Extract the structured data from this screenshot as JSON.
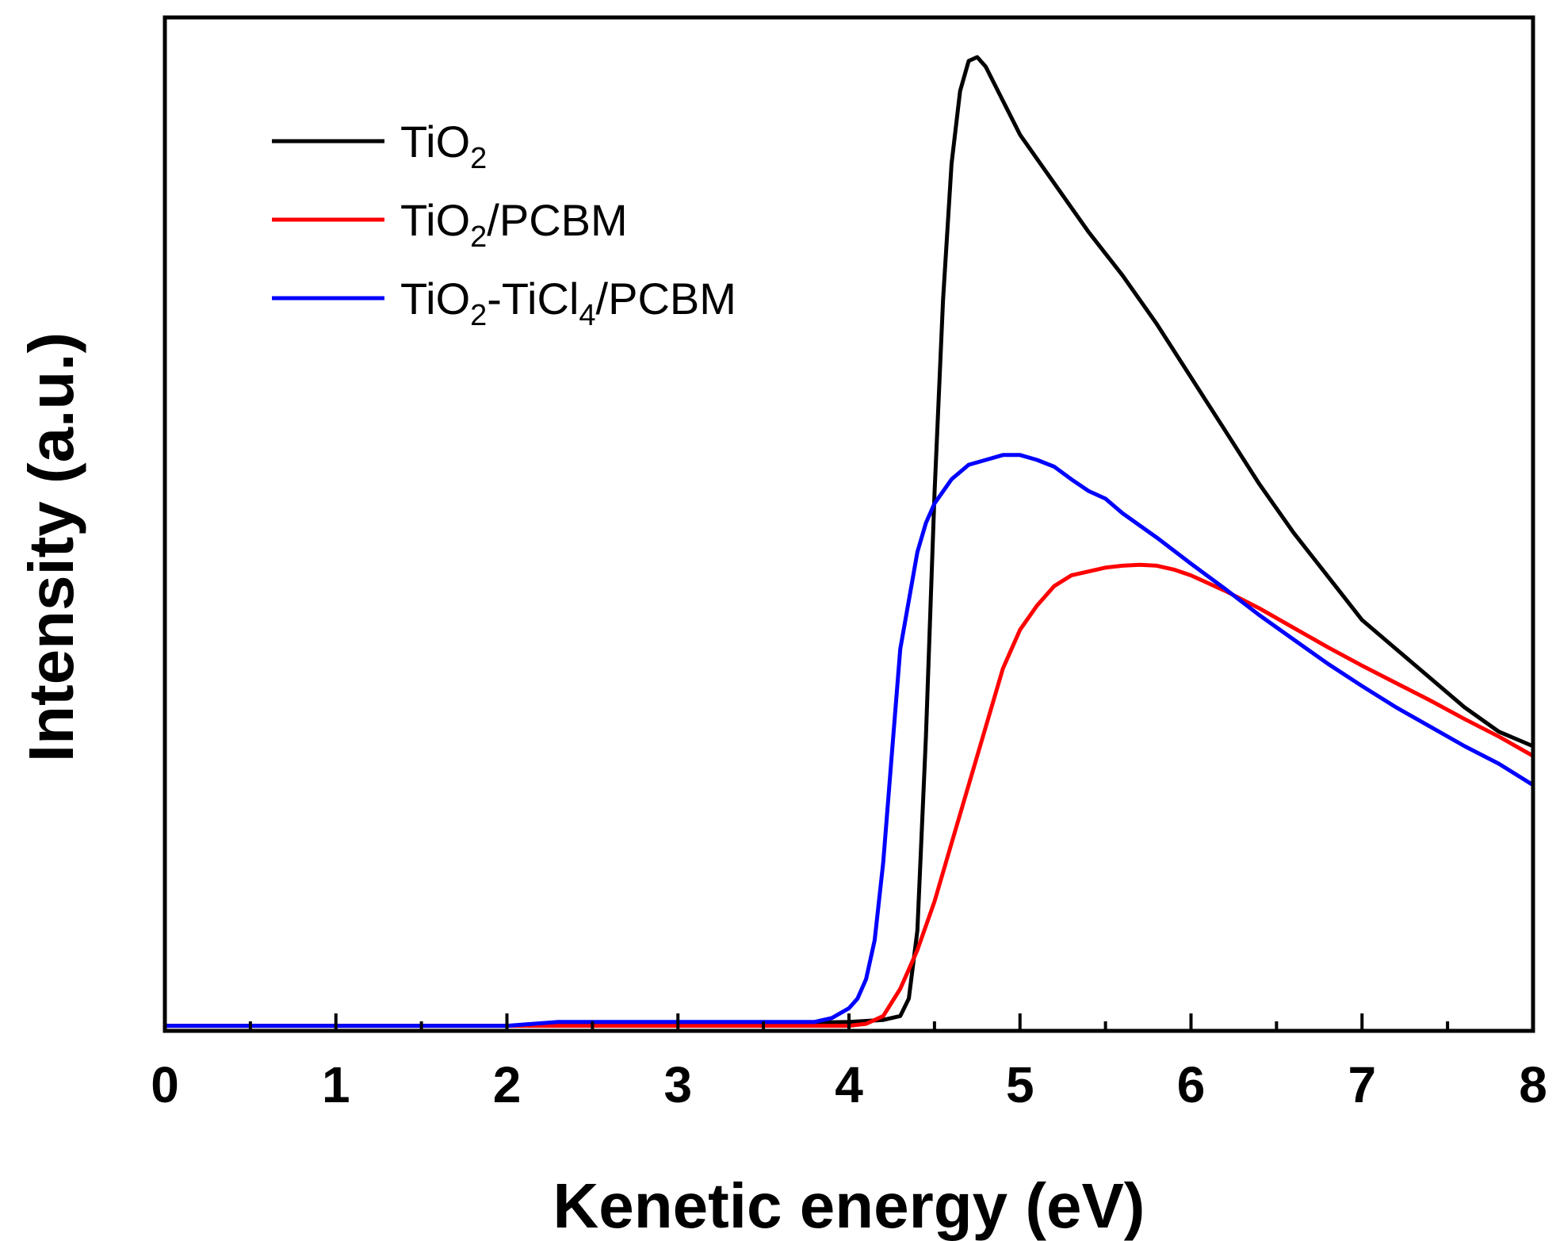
{
  "chart_data": {
    "type": "line",
    "title": "",
    "xlabel": "Kenetic energy (eV)",
    "ylabel": "Intensity (a.u.)",
    "xlim": [
      0,
      8
    ],
    "ylim": [
      0,
      1
    ],
    "y_tick_labels": false,
    "x_ticks": [
      0,
      1,
      2,
      3,
      4,
      5,
      6,
      7,
      8
    ],
    "x_tick_labels": [
      "0",
      "1",
      "2",
      "3",
      "4",
      "5",
      "6",
      "7",
      "8"
    ],
    "grid": false,
    "legend_position": "top-left",
    "series": [
      {
        "name": "TiO2",
        "label_main": "TiO",
        "label_sub": "2",
        "label_tail": "",
        "label_sub2": "",
        "label_tail2": "",
        "color": "#000000",
        "x": [
          0,
          1,
          2,
          3,
          3.5,
          4,
          4.2,
          4.3,
          4.35,
          4.4,
          4.45,
          4.5,
          4.55,
          4.6,
          4.65,
          4.7,
          4.75,
          4.8,
          4.9,
          5.0,
          5.2,
          5.4,
          5.6,
          5.8,
          6.0,
          6.2,
          6.4,
          6.6,
          6.8,
          7.0,
          7.2,
          7.4,
          7.6,
          7.8,
          8.0
        ],
        "y": [
          0.002,
          0.002,
          0.002,
          0.004,
          0.004,
          0.006,
          0.008,
          0.012,
          0.03,
          0.1,
          0.3,
          0.55,
          0.75,
          0.89,
          0.965,
          0.996,
          1.0,
          0.99,
          0.955,
          0.92,
          0.87,
          0.82,
          0.775,
          0.725,
          0.67,
          0.615,
          0.56,
          0.51,
          0.465,
          0.42,
          0.39,
          0.36,
          0.33,
          0.305,
          0.29
        ]
      },
      {
        "name": "TiO2/PCBM",
        "label_main": "TiO",
        "label_sub": "2",
        "label_tail": "/PCBM",
        "label_sub2": "",
        "label_tail2": "",
        "color": "#ff0000",
        "x": [
          0,
          1,
          2,
          3,
          3.5,
          4,
          4.1,
          4.2,
          4.3,
          4.4,
          4.5,
          4.6,
          4.7,
          4.8,
          4.9,
          5.0,
          5.1,
          5.2,
          5.3,
          5.4,
          5.5,
          5.6,
          5.7,
          5.8,
          5.9,
          6.0,
          6.2,
          6.4,
          6.6,
          6.8,
          7.0,
          7.2,
          7.4,
          7.6,
          7.8,
          8.0
        ],
        "y": [
          0.002,
          0.002,
          0.002,
          0.002,
          0.002,
          0.002,
          0.004,
          0.012,
          0.04,
          0.08,
          0.13,
          0.19,
          0.25,
          0.31,
          0.37,
          0.41,
          0.435,
          0.455,
          0.466,
          0.47,
          0.474,
          0.476,
          0.477,
          0.476,
          0.472,
          0.466,
          0.45,
          0.432,
          0.412,
          0.392,
          0.373,
          0.355,
          0.337,
          0.318,
          0.3,
          0.28
        ]
      },
      {
        "name": "TiO2-TiCl4/PCBM",
        "label_main": "TiO",
        "label_sub": "2",
        "label_tail": "-TiCl",
        "label_sub2": "4",
        "label_tail2": "/PCBM",
        "color": "#0000ff",
        "x": [
          0,
          1,
          2,
          2.3,
          3,
          3.5,
          3.8,
          3.9,
          4.0,
          4.05,
          4.1,
          4.15,
          4.2,
          4.25,
          4.3,
          4.35,
          4.4,
          4.45,
          4.5,
          4.6,
          4.7,
          4.8,
          4.9,
          5.0,
          5.1,
          5.2,
          5.3,
          5.4,
          5.5,
          5.6,
          5.8,
          6.0,
          6.2,
          6.4,
          6.6,
          6.8,
          7.0,
          7.2,
          7.4,
          7.6,
          7.8,
          8.0
        ],
        "y": [
          0.002,
          0.002,
          0.002,
          0.006,
          0.006,
          0.006,
          0.006,
          0.01,
          0.02,
          0.03,
          0.05,
          0.09,
          0.17,
          0.28,
          0.39,
          0.44,
          0.49,
          0.52,
          0.54,
          0.565,
          0.58,
          0.585,
          0.59,
          0.59,
          0.585,
          0.578,
          0.565,
          0.553,
          0.545,
          0.53,
          0.505,
          0.478,
          0.452,
          0.425,
          0.4,
          0.375,
          0.352,
          0.33,
          0.31,
          0.29,
          0.272,
          0.25
        ]
      }
    ]
  }
}
